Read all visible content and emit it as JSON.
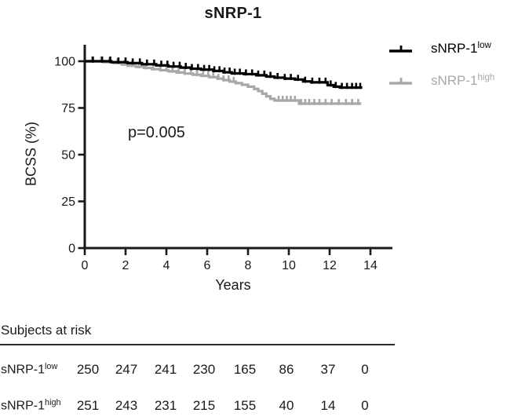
{
  "chart_data": {
    "type": "line",
    "subtype": "kaplan-meier-step",
    "title": "sNRP-1",
    "xlabel": "Years",
    "ylabel": "BCSS (%)",
    "annotation": "p=0.005",
    "xlim": [
      0,
      15.1
    ],
    "ylim": [
      0,
      110
    ],
    "xticks": [
      0,
      2,
      4,
      6,
      8,
      10,
      12,
      14
    ],
    "yticks": [
      0,
      25,
      50,
      75,
      100
    ],
    "grid": "off",
    "legend_position": "right-top",
    "series": [
      {
        "name": "sNRP-1 low",
        "label_base": "sNRP-1",
        "label_sup": "low",
        "color": "#000000",
        "end_time": 13.6,
        "steps": [
          [
            0,
            100
          ],
          [
            1.3,
            99.5
          ],
          [
            2.1,
            99.0
          ],
          [
            2.8,
            98.4
          ],
          [
            3.5,
            97.8
          ],
          [
            4.1,
            97.2
          ],
          [
            4.7,
            96.6
          ],
          [
            5.2,
            96.0
          ],
          [
            5.7,
            95.5
          ],
          [
            6.3,
            94.8
          ],
          [
            6.8,
            94.1
          ],
          [
            7.2,
            93.5
          ],
          [
            7.8,
            93.1
          ],
          [
            8.4,
            92.5
          ],
          [
            8.9,
            91.8
          ],
          [
            9.3,
            91.2
          ],
          [
            9.8,
            90.7
          ],
          [
            10.3,
            90.2
          ],
          [
            10.7,
            89.2
          ],
          [
            11.1,
            88.7
          ],
          [
            11.9,
            87.2
          ],
          [
            12.2,
            86.4
          ],
          [
            12.5,
            85.9
          ]
        ],
        "censor_times": [
          0.4,
          0.85,
          1.25,
          1.65,
          2.0,
          2.35,
          2.7,
          3.05,
          3.4,
          3.75,
          4.05,
          4.35,
          4.65,
          4.95,
          5.25,
          5.55,
          5.85,
          6.1,
          6.35,
          6.6,
          6.85,
          7.1,
          7.35,
          7.6,
          7.9,
          8.2,
          8.5,
          8.8,
          9.1,
          9.45,
          9.8,
          10.1,
          10.45,
          10.8,
          11.15,
          11.5,
          11.8,
          12.05,
          12.3,
          12.6,
          12.85,
          13.1,
          13.3,
          13.5
        ]
      },
      {
        "name": "sNRP-1 high",
        "label_base": "sNRP-1",
        "label_sup": "high",
        "color": "#a8a8a8",
        "end_time": 13.55,
        "steps": [
          [
            0,
            100
          ],
          [
            0.9,
            99.5
          ],
          [
            1.4,
            99.0
          ],
          [
            1.8,
            98.3
          ],
          [
            2.1,
            97.6
          ],
          [
            2.5,
            97.0
          ],
          [
            2.9,
            96.4
          ],
          [
            3.3,
            95.8
          ],
          [
            3.7,
            95.2
          ],
          [
            4.1,
            94.6
          ],
          [
            4.5,
            94.0
          ],
          [
            4.9,
            93.4
          ],
          [
            5.3,
            92.8
          ],
          [
            5.7,
            92.2
          ],
          [
            6.1,
            91.5
          ],
          [
            6.5,
            90.7
          ],
          [
            6.8,
            89.9
          ],
          [
            7.1,
            89.1
          ],
          [
            7.4,
            88.3
          ],
          [
            7.7,
            87.4
          ],
          [
            8.0,
            86.4
          ],
          [
            8.3,
            85.2
          ],
          [
            8.5,
            84.0
          ],
          [
            8.7,
            82.6
          ],
          [
            8.9,
            81.2
          ],
          [
            9.1,
            79.9
          ],
          [
            9.3,
            79.0
          ],
          [
            10.5,
            77.3
          ]
        ],
        "censor_times": [
          0.35,
          0.8,
          1.2,
          1.6,
          1.95,
          2.3,
          2.65,
          3.0,
          3.35,
          3.7,
          4.0,
          4.3,
          4.6,
          4.9,
          5.2,
          5.5,
          5.8,
          6.05,
          6.3,
          6.55,
          6.8,
          7.05,
          7.3,
          9.5,
          9.7,
          9.9,
          10.1,
          10.3,
          10.6,
          10.8,
          11.0,
          11.25,
          11.5,
          11.8,
          12.1,
          12.45,
          12.8,
          13.1,
          13.4
        ]
      }
    ]
  },
  "risk_table": {
    "header": "Subjects at risk",
    "time_points": [
      0,
      2,
      4,
      6,
      8,
      10,
      12,
      14
    ],
    "rows": [
      {
        "label_base": "sNRP-1",
        "label_sup": "low",
        "counts": [
          "250",
          "247",
          "241",
          "230",
          "165",
          "86",
          "37",
          "0"
        ]
      },
      {
        "label_base": "sNRP-1",
        "label_sup": "high",
        "counts": [
          "251",
          "243",
          "231",
          "215",
          "155",
          "40",
          "14",
          "0"
        ]
      }
    ]
  },
  "colors": {
    "ink": "#1a1a1a",
    "series_low": "#000000",
    "series_high": "#a8a8a8"
  }
}
